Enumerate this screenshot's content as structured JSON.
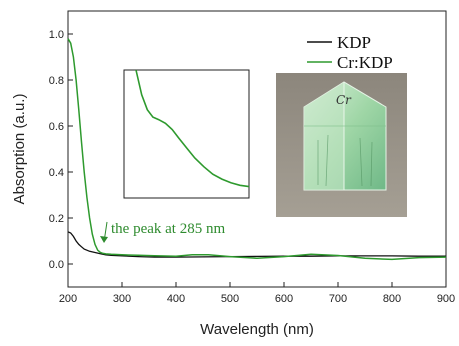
{
  "chart_data": {
    "type": "line",
    "xlabel": "Wavelength (nm)",
    "ylabel": "Absorption (a.u.)",
    "xlim": [
      200,
      900
    ],
    "ylim": [
      -0.1,
      1.1
    ],
    "x_ticks": [
      "200",
      "300",
      "400",
      "500",
      "600",
      "700",
      "800",
      "900"
    ],
    "y_ticks": [
      "0.0",
      "0.2",
      "0.4",
      "0.6",
      "0.8",
      "1.0"
    ],
    "legend_position": "top-right",
    "series": [
      {
        "name": "KDP",
        "color": "#111111",
        "x": [
          200,
          205,
          210,
          215,
          220,
          225,
          230,
          240,
          250,
          260,
          270,
          280,
          300,
          330,
          360,
          400,
          450,
          500,
          550,
          600,
          650,
          700,
          750,
          800,
          850,
          900
        ],
        "y": [
          0.14,
          0.135,
          0.12,
          0.1,
          0.085,
          0.075,
          0.065,
          0.055,
          0.05,
          0.045,
          0.04,
          0.038,
          0.035,
          0.032,
          0.03,
          0.03,
          0.031,
          0.032,
          0.033,
          0.034,
          0.034,
          0.035,
          0.035,
          0.035,
          0.034,
          0.034
        ]
      },
      {
        "name": "Cr:KDP",
        "color": "#2e9a2e",
        "x": [
          200,
          205,
          210,
          215,
          220,
          225,
          230,
          235,
          240,
          245,
          250,
          255,
          260,
          265,
          270,
          280,
          300,
          330,
          360,
          400,
          430,
          460,
          500,
          550,
          600,
          650,
          700,
          750,
          800,
          850,
          900
        ],
        "y": [
          0.98,
          0.96,
          0.9,
          0.8,
          0.67,
          0.53,
          0.4,
          0.29,
          0.2,
          0.13,
          0.085,
          0.06,
          0.05,
          0.046,
          0.044,
          0.042,
          0.04,
          0.038,
          0.036,
          0.034,
          0.04,
          0.04,
          0.032,
          0.025,
          0.032,
          0.042,
          0.037,
          0.025,
          0.02,
          0.028,
          0.03
        ]
      }
    ],
    "inset": {
      "x": [
        0,
        0.05,
        0.1,
        0.15,
        0.2,
        0.26,
        0.32,
        0.38,
        0.45,
        0.52,
        0.6,
        0.68,
        0.76,
        0.84,
        0.92,
        1.0
      ],
      "y": [
        1.0,
        0.8,
        0.68,
        0.62,
        0.6,
        0.57,
        0.52,
        0.45,
        0.37,
        0.29,
        0.22,
        0.16,
        0.12,
        0.09,
        0.07,
        0.06
      ],
      "color": "#2e9a2e"
    },
    "annotations": [
      {
        "text": "the  peak at 285 nm",
        "color": "#2e8b2e"
      }
    ],
    "photo_label": "Cr"
  }
}
